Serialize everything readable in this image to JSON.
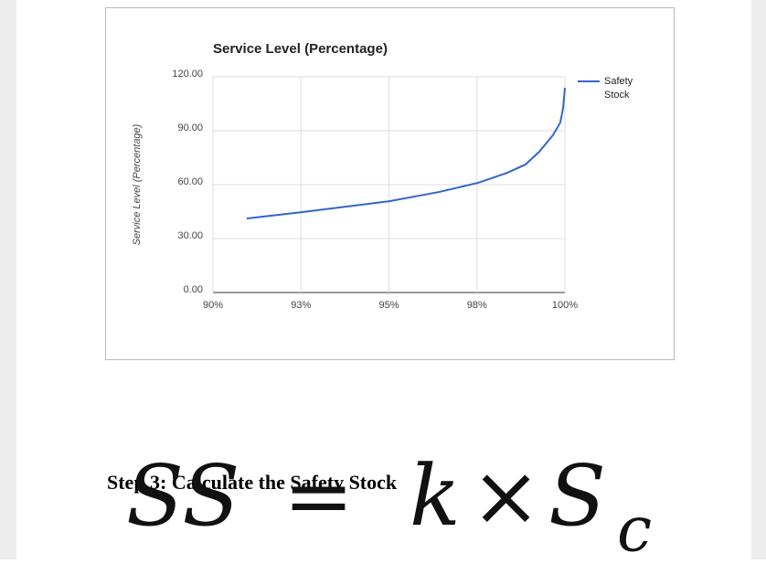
{
  "chart_data": {
    "type": "line",
    "title": "Service Level (Percentage)",
    "y_label": "Service Level (Percentage)",
    "x": [
      90.96,
      92.52,
      95.01,
      96.42,
      97.53,
      98.36,
      98.88,
      99.27,
      99.66,
      99.87,
      99.95,
      100
    ],
    "series": [
      {
        "name": "Safety Stock",
        "color": "#3366cc",
        "values": [
          41.2,
          44.7,
          50.8,
          55.9,
          61.0,
          66.6,
          71.2,
          78.3,
          87.5,
          94.6,
          102.7,
          113.9
        ]
      }
    ],
    "xlim": [
      90,
      100
    ],
    "xticks": [
      {
        "value": 90,
        "label": "90%"
      },
      {
        "value": 92.5,
        "label": "93%"
      },
      {
        "value": 95,
        "label": "95%"
      },
      {
        "value": 97.5,
        "label": "98%"
      },
      {
        "value": 100,
        "label": "100%"
      }
    ],
    "ylim": [
      0,
      120
    ],
    "yticks": [
      {
        "value": 0,
        "label": "0.00"
      },
      {
        "value": 30,
        "label": "30.00"
      },
      {
        "value": 60,
        "label": "60.00"
      },
      {
        "value": 90,
        "label": "90.00"
      },
      {
        "value": 120,
        "label": "120.00"
      }
    ],
    "grid": true,
    "legend": "right"
  },
  "heading": "Step 3: Calculate the Safety Stock",
  "formula": {
    "lhs": "SS",
    "equals": "=",
    "k": "k",
    "times": "×",
    "s": "S",
    "subscript": "c"
  }
}
